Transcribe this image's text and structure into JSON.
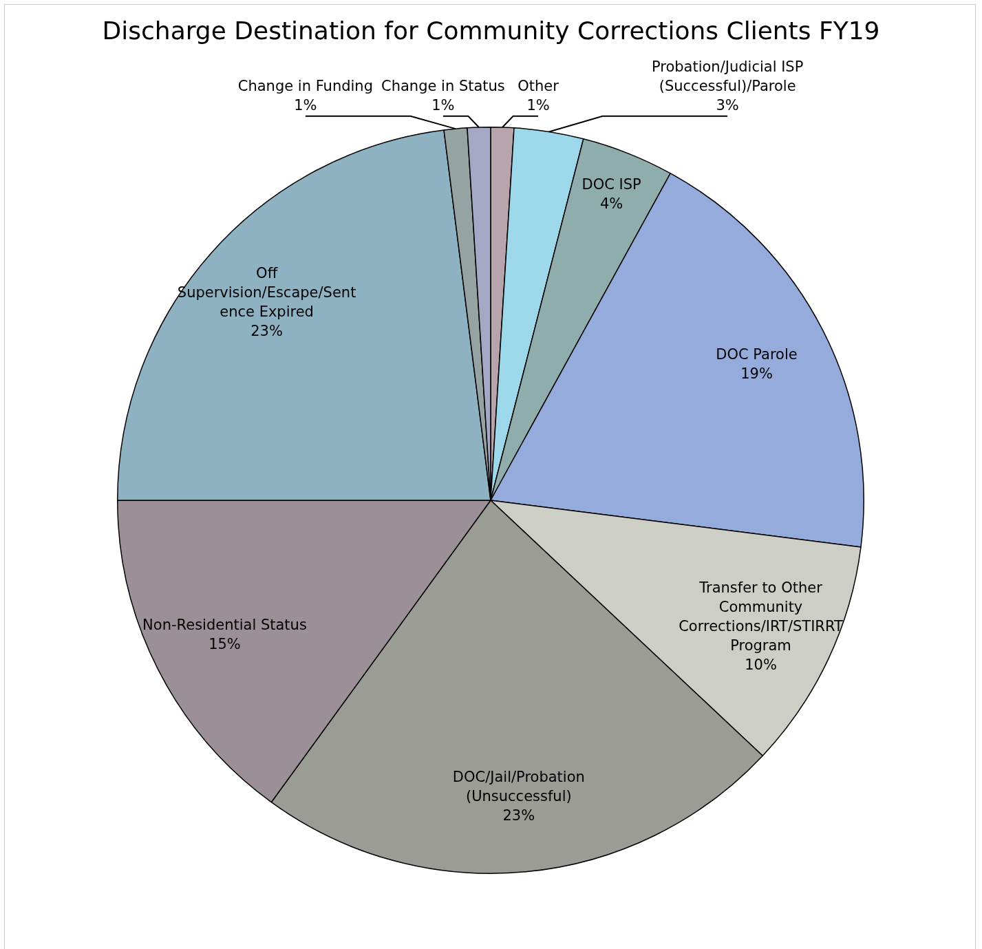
{
  "chart_data": {
    "type": "pie",
    "title": "Discharge Destination for Community Corrections Clients FY19",
    "categories": [
      "Other",
      "Probation/Judicial ISP (Successful)/Parole",
      "DOC ISP",
      "DOC Parole",
      "Transfer to Other Community Corrections/IRT/STIRRT Program",
      "DOC/Jail/Probation (Unsuccessful)",
      "Non-Residential Status",
      "Off Supervision/Escape/Sentence Expired",
      "Change in Funding",
      "Change in Status"
    ],
    "values": [
      1,
      3,
      4,
      19,
      10,
      23,
      15,
      23,
      1,
      1
    ],
    "value_labels": [
      "1%",
      "3%",
      "4%",
      "19%",
      "10%",
      "23%",
      "15%",
      "23%",
      "1%",
      "1%"
    ],
    "colors": [
      "#b8a4ad",
      "#9cd8ea",
      "#8fadad",
      "#95abdc",
      "#cdcec6",
      "#9c9c96",
      "#9c9098",
      "#8eb2c2",
      "#95a3a3",
      "#a4a8c4"
    ],
    "legend": false
  }
}
